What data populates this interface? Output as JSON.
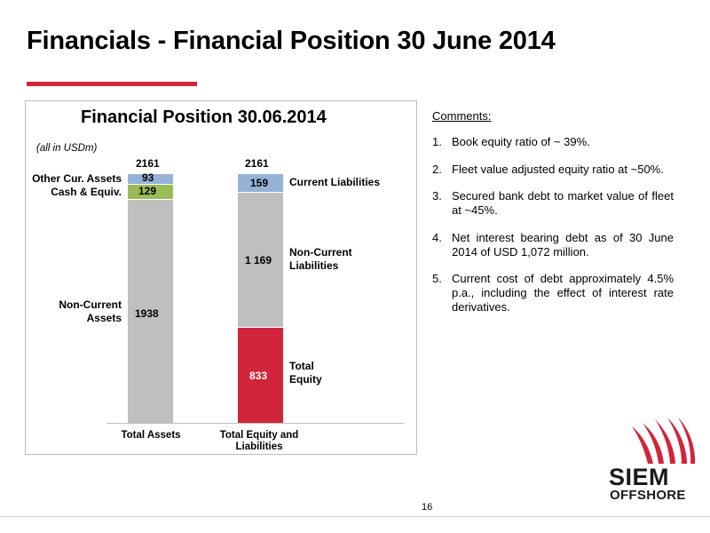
{
  "page": {
    "title": "Financials - Financial Position 30 June 2014",
    "page_number": "16",
    "accent_color": "#d0253a"
  },
  "chart_data": {
    "type": "bar",
    "stacked": true,
    "title": "Financial Position 30.06.2014",
    "note": "(all in USDm)",
    "categories": [
      "Total Assets",
      "Total Equity and Liabilities"
    ],
    "totals": [
      "2161",
      "2161"
    ],
    "columns": [
      {
        "category": "Total Assets",
        "segments": [
          {
            "name": "Non-Current Assets",
            "value": 1938,
            "value_label": "1938",
            "color": "#bfbfbf"
          },
          {
            "name": "Cash & Equiv.",
            "value": 129,
            "value_label": "129",
            "color": "#9bbb59"
          },
          {
            "name": "Other Cur. Assets",
            "value": 93,
            "value_label": "93",
            "color": "#95b3d7"
          }
        ]
      },
      {
        "category": "Total Equity and Liabilities",
        "segments": [
          {
            "name": "Total Equity",
            "value": 833,
            "value_label": "833",
            "color": "#d0253a"
          },
          {
            "name": "Non-Current Liabilities",
            "value": 1169,
            "value_label": "1 169",
            "color": "#bfbfbf"
          },
          {
            "name": "Current Liabilities",
            "value": 159,
            "value_label": "159",
            "color": "#95b3d7"
          }
        ]
      }
    ],
    "labels": {
      "other_cur_assets": "Other Cur. Assets",
      "cash_equiv": "Cash & Equiv.",
      "non_current_assets_1": "Non-Current",
      "non_current_assets_2": "Assets",
      "current_liabilities": "Current Liabilities",
      "non_current_liabilities_1": "Non-Current",
      "non_current_liabilities_2": "Liabilities",
      "total_equity_1": "Total",
      "total_equity_2": "Equity"
    },
    "category_labels": {
      "assets": "Total Assets",
      "liab_1": "Total Equity and",
      "liab_2": "Liabilities"
    }
  },
  "comments": {
    "heading": "Comments:",
    "items": [
      {
        "num": "1.",
        "text": "Book equity ratio of ~ 39%."
      },
      {
        "num": "2.",
        "text": "Fleet value adjusted equity ratio at ~50%."
      },
      {
        "num": "3.",
        "text": "Secured bank debt to market value of fleet at ~45%."
      },
      {
        "num": "4.",
        "text": "Net interest bearing debt as of 30 June 2014 of USD 1,072 million."
      },
      {
        "num": "5.",
        "text": "Current cost of debt approximately 4.5% p.a., including the effect of interest rate derivatives."
      }
    ]
  },
  "logo": {
    "line1": "SIEM",
    "line2": "OFFSHORE",
    "icon": "siem-sail-icon"
  }
}
